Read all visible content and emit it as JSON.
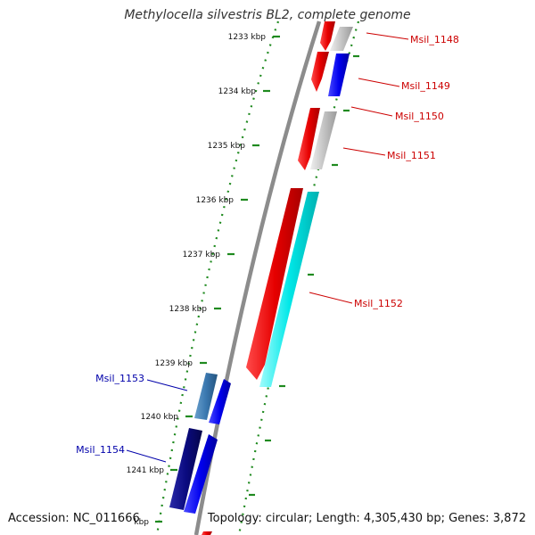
{
  "title": "Methylocella silvestris BL2, complete genome",
  "footer": {
    "accession": "Accession: NC_011666",
    "topology": "Topology: circular; Length: 4,305,430 bp; Genes: 3,872"
  },
  "colors": {
    "backbone": "#8c8c8c",
    "ruler_dots": "#1f8a1f",
    "forward_label": "#cc0000",
    "reverse_label": "#0000aa"
  },
  "ruler": {
    "ticks": [
      "1233 kbp",
      "1234 kbp",
      "1235 kbp",
      "1236 kbp",
      "1237 kbp",
      "1238 kbp",
      "1239 kbp",
      "1240 kbp",
      "1241 kbp",
      "kbp"
    ]
  },
  "genes": [
    {
      "name": "Msil_1148",
      "strand": "forward",
      "color": "#e60000"
    },
    {
      "name": "Msil_1149",
      "strand": "forward",
      "color": "#e60000"
    },
    {
      "name": "Msil_1150",
      "strand": "forward",
      "color": "#e60000"
    },
    {
      "name": "Msil_1151",
      "strand": "forward",
      "color": "#e60000"
    },
    {
      "name": "Msil_1152",
      "strand": "forward",
      "color": "#e60000"
    },
    {
      "name": "Msil_1153",
      "strand": "reverse",
      "color": "#3a78b0"
    },
    {
      "name": "Msil_1154",
      "strand": "reverse",
      "color": "#0a0a80"
    }
  ]
}
